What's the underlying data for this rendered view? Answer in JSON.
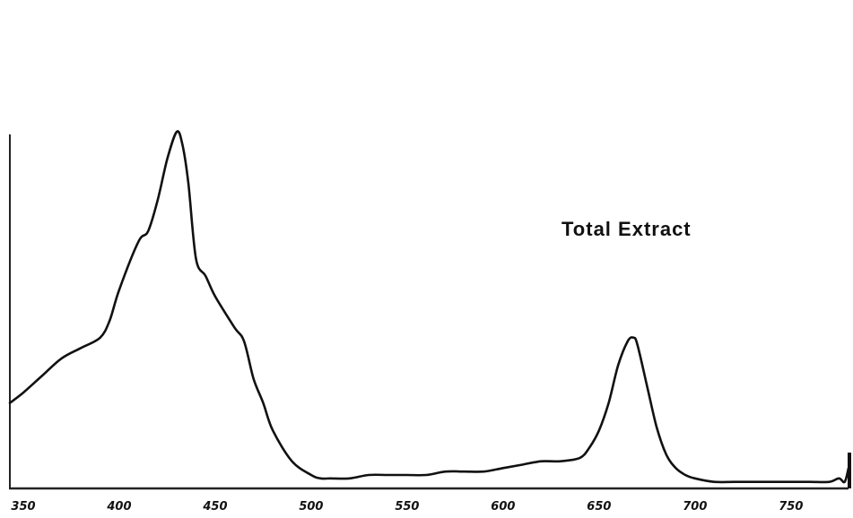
{
  "chart_data": {
    "type": "line",
    "title": "",
    "xlabel": "",
    "ylabel": "",
    "xlim": [
      343,
      780
    ],
    "ylim": [
      0,
      1
    ],
    "grid": false,
    "legend": "none",
    "x_ticks": [
      350,
      400,
      450,
      500,
      550,
      600,
      650,
      700,
      750
    ],
    "x_tick_labels": [
      "350",
      "400",
      "450",
      "500",
      "550",
      "600",
      "650",
      "700",
      "750"
    ],
    "annotation": "Total Extract",
    "series": [
      {
        "color": "#111111",
        "x": [
          343,
          350,
          360,
          370,
          380,
          390,
          395,
          400,
          410,
          415,
          420,
          425,
          430,
          433,
          436,
          440,
          445,
          450,
          460,
          465,
          470,
          475,
          480,
          490,
          500,
          505,
          510,
          520,
          530,
          540,
          550,
          560,
          570,
          580,
          590,
          600,
          610,
          620,
          630,
          640,
          645,
          650,
          655,
          660,
          665,
          668,
          670,
          675,
          680,
          685,
          690,
          695,
          700,
          710,
          720,
          730,
          740,
          750,
          760,
          770,
          775,
          778,
          780
        ],
        "y": [
          0.21,
          0.24,
          0.29,
          0.34,
          0.37,
          0.4,
          0.45,
          0.54,
          0.68,
          0.71,
          0.8,
          0.92,
          1.0,
          0.96,
          0.85,
          0.63,
          0.58,
          0.52,
          0.43,
          0.39,
          0.28,
          0.21,
          0.13,
          0.04,
          0.0,
          -0.01,
          -0.01,
          -0.01,
          0.0,
          0.0,
          0.0,
          0.0,
          0.01,
          0.01,
          0.01,
          0.02,
          0.03,
          0.04,
          0.04,
          0.05,
          0.08,
          0.13,
          0.21,
          0.32,
          0.39,
          0.4,
          0.38,
          0.26,
          0.14,
          0.06,
          0.02,
          0.0,
          -0.01,
          -0.02,
          -0.02,
          -0.02,
          -0.02,
          -0.02,
          -0.02,
          -0.02,
          -0.01,
          -0.02,
          0.02
        ]
      }
    ]
  }
}
